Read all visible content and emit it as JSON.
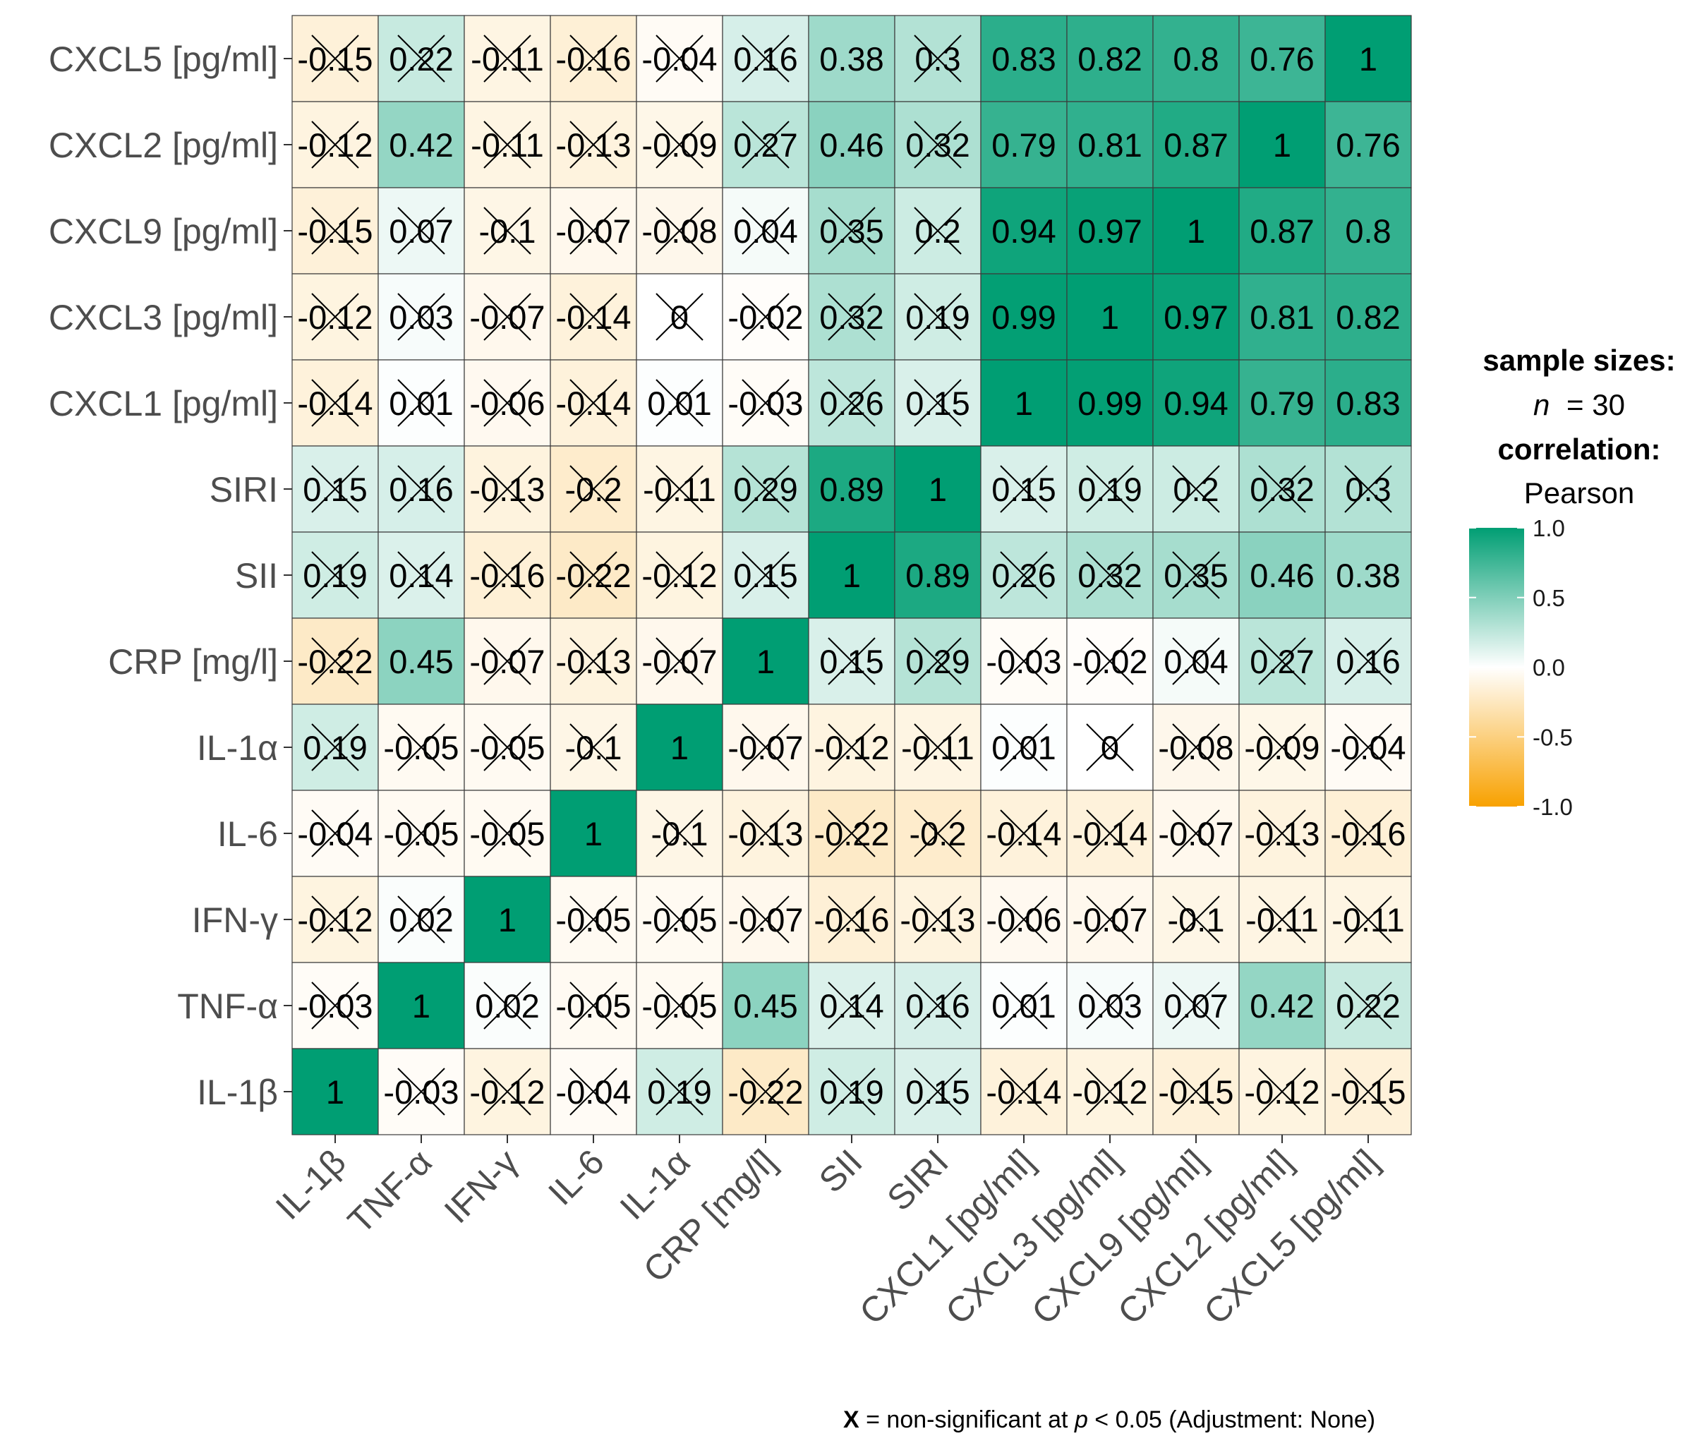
{
  "chart_data": {
    "type": "heatmap",
    "title": "",
    "xlabel": "",
    "ylabel": "",
    "variables": [
      "IL-1β",
      "TNF-α",
      "IFN-γ",
      "IL-6",
      "IL-1α",
      "CRP [mg/l]",
      "SII",
      "SIRI",
      "CXCL1 [pg/ml]",
      "CXCL3 [pg/ml]",
      "CXCL9 [pg/ml]",
      "CXCL2 [pg/ml]",
      "CXCL5 [pg/ml]"
    ],
    "rows_top_to_bottom": [
      "CXCL5 [pg/ml]",
      "CXCL2 [pg/ml]",
      "CXCL9 [pg/ml]",
      "CXCL3 [pg/ml]",
      "CXCL1 [pg/ml]",
      "SIRI",
      "SII",
      "CRP [mg/l]",
      "IL-1α",
      "IL-6",
      "IFN-γ",
      "TNF-α",
      "IL-1β"
    ],
    "columns": [
      "IL-1β",
      "TNF-α",
      "IFN-γ",
      "IL-6",
      "IL-1α",
      "CRP [mg/l]",
      "SII",
      "SIRI",
      "CXCL1 [pg/ml]",
      "CXCL3 [pg/ml]",
      "CXCL9 [pg/ml]",
      "CXCL2 [pg/ml]",
      "CXCL5 [pg/ml]"
    ],
    "values": [
      [
        "-0.15",
        "0.22",
        "-0.11",
        "-0.16",
        "-0.04",
        "0.16",
        "0.38",
        "0.3",
        "0.83",
        "0.82",
        "0.8",
        "0.76",
        "1"
      ],
      [
        "-0.12",
        "0.42",
        "-0.11",
        "-0.13",
        "-0.09",
        "0.27",
        "0.46",
        "0.32",
        "0.79",
        "0.81",
        "0.87",
        "1",
        "0.76"
      ],
      [
        "-0.15",
        "0.07",
        "-0.1",
        "-0.07",
        "-0.08",
        "0.04",
        "0.35",
        "0.2",
        "0.94",
        "0.97",
        "1",
        "0.87",
        "0.8"
      ],
      [
        "-0.12",
        "0.03",
        "-0.07",
        "-0.14",
        "0",
        "-0.02",
        "0.32",
        "0.19",
        "0.99",
        "1",
        "0.97",
        "0.81",
        "0.82"
      ],
      [
        "-0.14",
        "0.01",
        "-0.06",
        "-0.14",
        "0.01",
        "-0.03",
        "0.26",
        "0.15",
        "1",
        "0.99",
        "0.94",
        "0.79",
        "0.83"
      ],
      [
        "0.15",
        "0.16",
        "-0.13",
        "-0.2",
        "-0.11",
        "0.29",
        "0.89",
        "1",
        "0.15",
        "0.19",
        "0.2",
        "0.32",
        "0.3"
      ],
      [
        "0.19",
        "0.14",
        "-0.16",
        "-0.22",
        "-0.12",
        "0.15",
        "1",
        "0.89",
        "0.26",
        "0.32",
        "0.35",
        "0.46",
        "0.38"
      ],
      [
        "-0.22",
        "0.45",
        "-0.07",
        "-0.13",
        "-0.07",
        "1",
        "0.15",
        "0.29",
        "-0.03",
        "-0.02",
        "0.04",
        "0.27",
        "0.16"
      ],
      [
        "0.19",
        "-0.05",
        "-0.05",
        "-0.1",
        "1",
        "-0.07",
        "-0.12",
        "-0.11",
        "0.01",
        "0",
        "-0.08",
        "-0.09",
        "-0.04"
      ],
      [
        "-0.04",
        "-0.05",
        "-0.05",
        "1",
        "-0.1",
        "-0.13",
        "-0.22",
        "-0.2",
        "-0.14",
        "-0.14",
        "-0.07",
        "-0.13",
        "-0.16"
      ],
      [
        "-0.12",
        "0.02",
        "1",
        "-0.05",
        "-0.05",
        "-0.07",
        "-0.16",
        "-0.13",
        "-0.06",
        "-0.07",
        "-0.1",
        "-0.11",
        "-0.11"
      ],
      [
        "-0.03",
        "1",
        "0.02",
        "-0.05",
        "-0.05",
        "0.45",
        "0.14",
        "0.16",
        "0.01",
        "0.03",
        "0.07",
        "0.42",
        "0.22"
      ],
      [
        "1",
        "-0.03",
        "-0.12",
        "-0.04",
        "0.19",
        "-0.22",
        "0.19",
        "0.15",
        "-0.14",
        "-0.12",
        "-0.15",
        "-0.12",
        "-0.15"
      ]
    ],
    "nonsignificant": [
      [
        1,
        1,
        1,
        1,
        1,
        1,
        0,
        1,
        0,
        0,
        0,
        0,
        0
      ],
      [
        1,
        0,
        1,
        1,
        1,
        1,
        0,
        1,
        0,
        0,
        0,
        0,
        0
      ],
      [
        1,
        1,
        1,
        1,
        1,
        1,
        1,
        1,
        0,
        0,
        0,
        0,
        0
      ],
      [
        1,
        1,
        1,
        1,
        1,
        1,
        1,
        1,
        0,
        0,
        0,
        0,
        0
      ],
      [
        1,
        1,
        1,
        1,
        1,
        1,
        1,
        1,
        0,
        0,
        0,
        0,
        0
      ],
      [
        1,
        1,
        1,
        1,
        1,
        1,
        0,
        0,
        1,
        1,
        1,
        1,
        1
      ],
      [
        1,
        1,
        1,
        1,
        1,
        1,
        0,
        0,
        1,
        1,
        1,
        0,
        0
      ],
      [
        1,
        0,
        1,
        1,
        1,
        0,
        1,
        1,
        1,
        1,
        1,
        1,
        1
      ],
      [
        1,
        1,
        1,
        1,
        0,
        1,
        1,
        1,
        1,
        1,
        1,
        1,
        1
      ],
      [
        1,
        1,
        1,
        0,
        1,
        1,
        1,
        1,
        1,
        1,
        1,
        1,
        1
      ],
      [
        1,
        1,
        0,
        1,
        1,
        1,
        1,
        1,
        1,
        1,
        1,
        1,
        1
      ],
      [
        1,
        0,
        1,
        1,
        1,
        0,
        1,
        1,
        1,
        1,
        1,
        0,
        1
      ],
      [
        0,
        1,
        1,
        1,
        1,
        1,
        1,
        1,
        1,
        1,
        1,
        1,
        1
      ]
    ],
    "color_scale": {
      "low": -1.0,
      "mid": 0.0,
      "high": 1.0,
      "low_color": "#f8a100",
      "mid_color": "#ffffff",
      "high_color": "#009e73"
    },
    "legend": {
      "title_line1": "sample sizes:",
      "n_label": "n",
      "n_value": "= 30",
      "title_line2": "correlation:",
      "method": "Pearson",
      "ticks": [
        "1.0",
        "0.5",
        "0.0",
        "-0.5",
        "-1.0"
      ],
      "placement": "right"
    },
    "caption": {
      "x_symbol": "X",
      "text_a": " = non-significant at ",
      "p_symbol": "p",
      "text_b": " < 0.05 (Adjustment: None)"
    }
  }
}
